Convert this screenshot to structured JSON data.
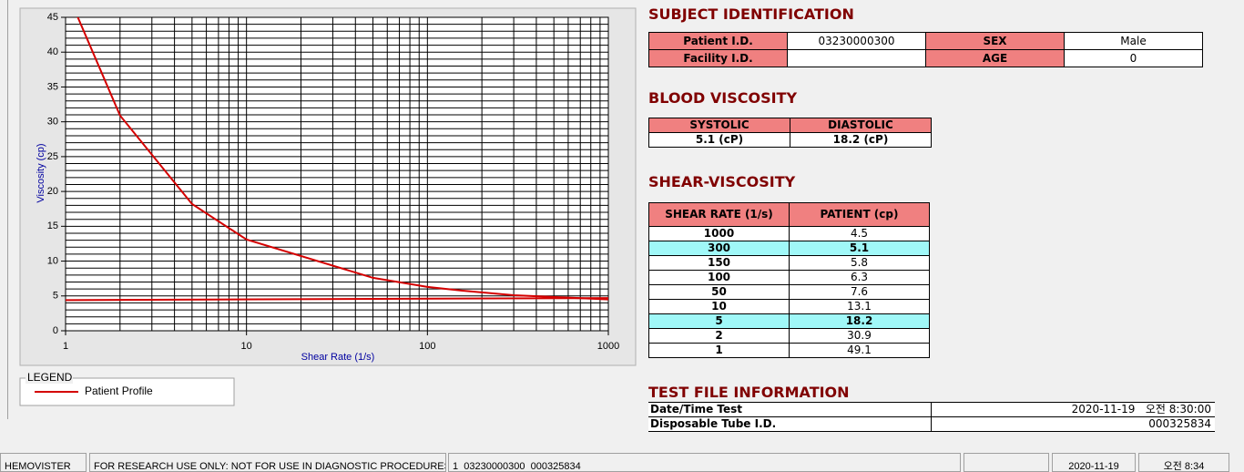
{
  "chart_data": {
    "type": "line",
    "ylabel": "Viscosity (cp)",
    "xlabel": "Shear Rate (1/s)",
    "xscale": "log",
    "x": [
      1,
      2,
      5,
      10,
      50,
      100,
      150,
      300,
      1000
    ],
    "series": [
      {
        "name": "Patient Profile",
        "color": "#d40000",
        "values": [
          49.1,
          30.9,
          18.2,
          13.1,
          7.6,
          6.3,
          5.8,
          5.1,
          4.5
        ]
      },
      {
        "color": "#d40000",
        "x": [
          1,
          1000
        ],
        "values": [
          4.4,
          4.7
        ]
      }
    ],
    "xlim": [
      1,
      1000
    ],
    "xticks": [
      1,
      10,
      100,
      1000
    ],
    "ylim": [
      0,
      45
    ],
    "yticks": [
      0,
      5,
      10,
      15,
      20,
      25,
      30,
      35,
      40,
      45
    ],
    "grid": true,
    "legend_title": "LEGEND"
  },
  "subject": {
    "title": "SUBJECT IDENTIFICATION",
    "rows": [
      [
        "Patient I.D.",
        "03230000300",
        "SEX",
        "Male"
      ],
      [
        "Facility I.D.",
        null,
        "AGE",
        "0"
      ]
    ]
  },
  "blood": {
    "title": "BLOOD VISCOSITY",
    "header": [
      "SYSTOLIC",
      "DIASTOLIC"
    ],
    "row": [
      "5.1 (cP)",
      "18.2 (cP)"
    ]
  },
  "shear": {
    "title": "SHEAR-VISCOSITY",
    "header": [
      "SHEAR RATE (1/s)",
      "PATIENT (cp)"
    ],
    "rows": [
      [
        "1000",
        "4.5"
      ],
      [
        "300",
        "5.1"
      ],
      [
        "150",
        "5.8"
      ],
      [
        "100",
        "6.3"
      ],
      [
        "50",
        "7.6"
      ],
      [
        "10",
        "13.1"
      ],
      [
        "5",
        "18.2"
      ],
      [
        "2",
        "30.9"
      ],
      [
        "1",
        "49.1"
      ]
    ],
    "highlight_rows": [
      1,
      6
    ]
  },
  "test_file": {
    "title": "TEST FILE INFORMATION",
    "rows": [
      [
        "Date/Time Test",
        "2020-11-19   오전 8:30:00"
      ],
      [
        "Disposable Tube I.D.",
        "000325834"
      ]
    ]
  },
  "status_bar": [
    "HEMOVISTER",
    "FOR RESEARCH USE ONLY: NOT FOR USE IN DIAGNOSTIC PROCEDURES",
    "1  03230000300  000325834",
    "2020-11-19",
    "오전 8:34"
  ]
}
